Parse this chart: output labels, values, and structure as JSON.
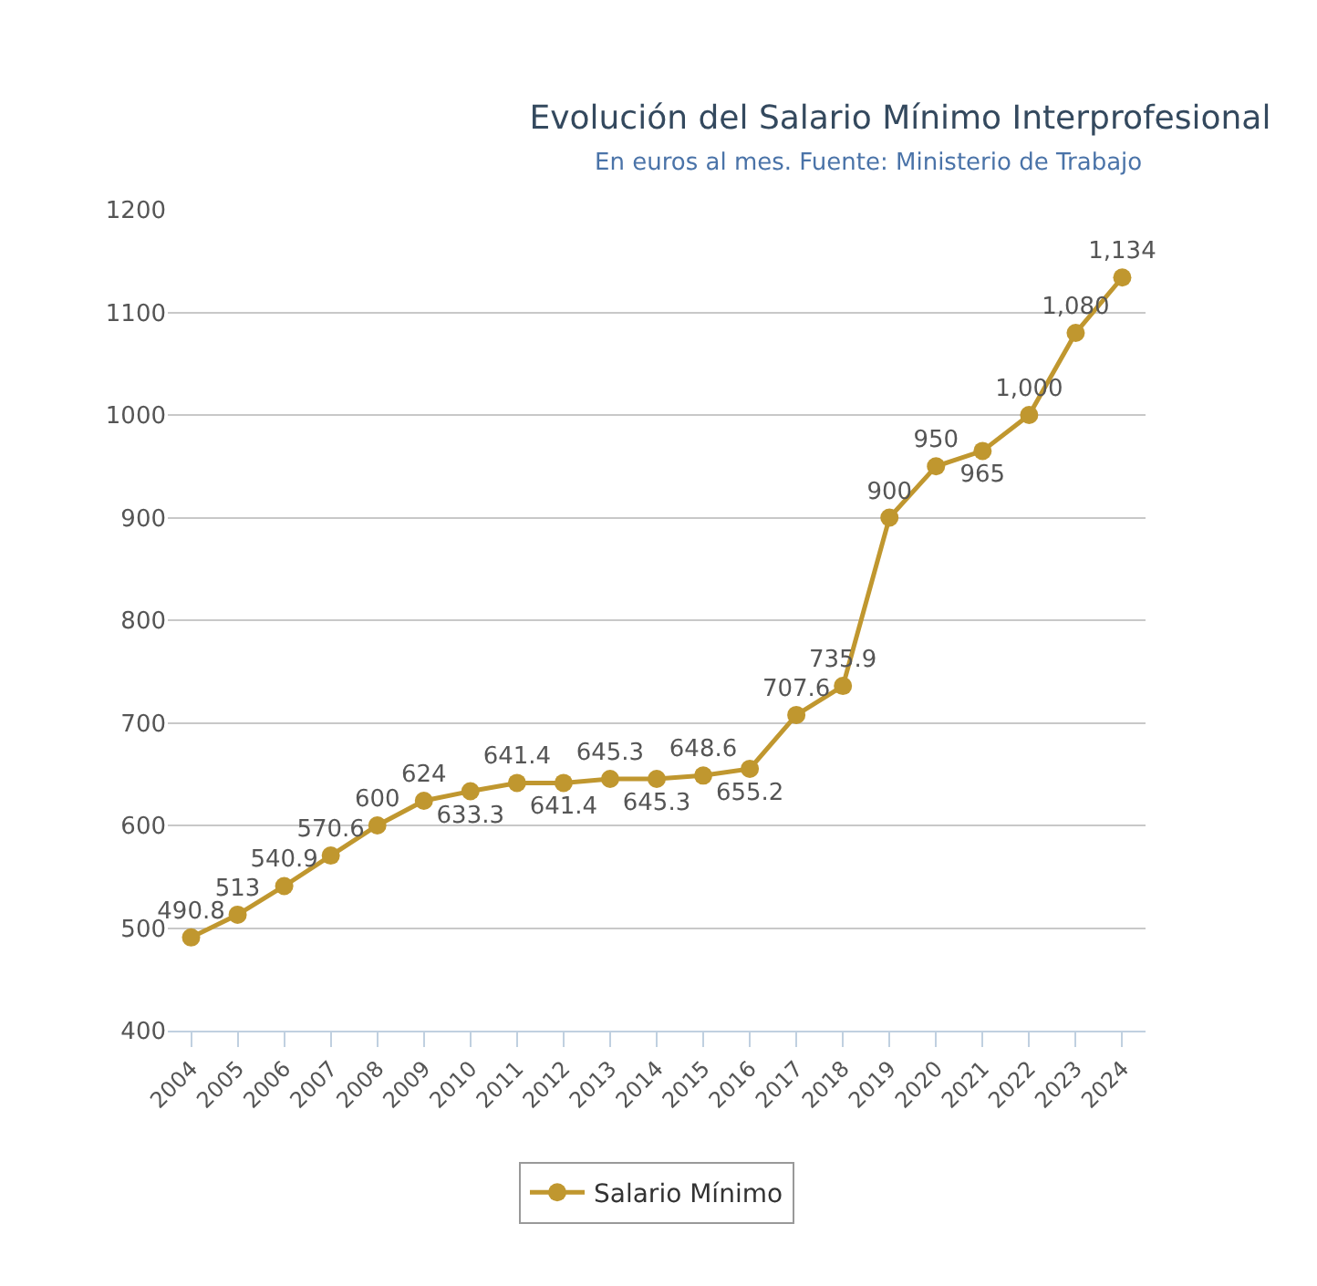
{
  "chart_data": {
    "type": "line",
    "title": "Evolución del Salario Mínimo Interprofesional",
    "subtitle": "En euros al mes. Fuente: Ministerio de Trabajo",
    "x": [
      2004,
      2005,
      2006,
      2007,
      2008,
      2009,
      2010,
      2011,
      2012,
      2013,
      2014,
      2015,
      2016,
      2017,
      2018,
      2019,
      2020,
      2021,
      2022,
      2023,
      2024
    ],
    "series": [
      {
        "name": "Salario Mínimo",
        "color": "#c0972f",
        "values": [
          490.8,
          513,
          540.9,
          570.6,
          600,
          624,
          633.3,
          641.4,
          641.4,
          645.3,
          645.3,
          648.6,
          655.2,
          707.6,
          735.9,
          900,
          950,
          965,
          1000,
          1080,
          1134
        ],
        "value_labels": [
          "490.8",
          "513",
          "540.9",
          "570.6",
          "600",
          "624",
          "633.3",
          "641.4",
          "641.4",
          "645.3",
          "645.3",
          "648.6",
          "655.2",
          "707.6",
          "735.9",
          "900",
          "950",
          "965",
          "1,000",
          "1,080",
          "1,134"
        ]
      }
    ],
    "xlim": [
      2003.5,
      2024.5
    ],
    "xticks": [
      2004,
      2005,
      2006,
      2007,
      2008,
      2009,
      2010,
      2011,
      2012,
      2013,
      2014,
      2015,
      2016,
      2017,
      2018,
      2019,
      2020,
      2021,
      2022,
      2023,
      2024
    ],
    "ylim": [
      400,
      1200
    ],
    "yticks": [
      400,
      500,
      600,
      700,
      800,
      900,
      1000,
      1100,
      1200
    ],
    "grid": "y",
    "legend": "bottom",
    "marker": "circle",
    "line_style": "solid"
  }
}
